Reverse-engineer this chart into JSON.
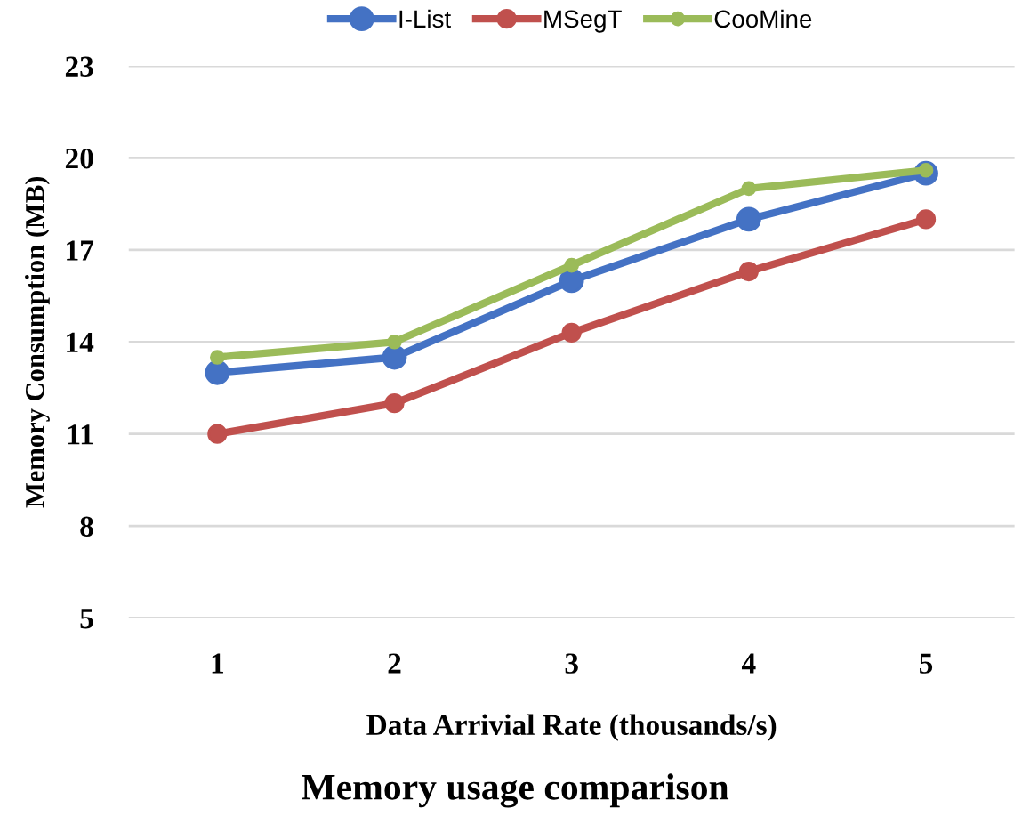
{
  "chart_data": {
    "type": "line",
    "title": "Memory usage comparison",
    "xlabel": "Data Arrivial Rate (thousands/s)",
    "ylabel": "Memory Consumption (MB)",
    "categories": [
      "1",
      "2",
      "3",
      "4",
      "5"
    ],
    "series": [
      {
        "name": "I-List",
        "color": "#4472c4",
        "values": [
          13.0,
          13.5,
          16.0,
          18.0,
          19.5
        ]
      },
      {
        "name": "MSegT",
        "color": "#c0504d",
        "values": [
          11.0,
          12.0,
          14.3,
          16.3,
          18.0
        ]
      },
      {
        "name": "CooMine",
        "color": "#9bbb59",
        "values": [
          13.5,
          14.0,
          16.5,
          19.0,
          19.6
        ]
      }
    ],
    "ylim": [
      5,
      23
    ],
    "yticks": [
      5,
      8,
      11,
      14,
      17,
      20,
      23
    ],
    "grid": "y",
    "legend": "top",
    "marker": "circle",
    "line_style": "solid"
  }
}
